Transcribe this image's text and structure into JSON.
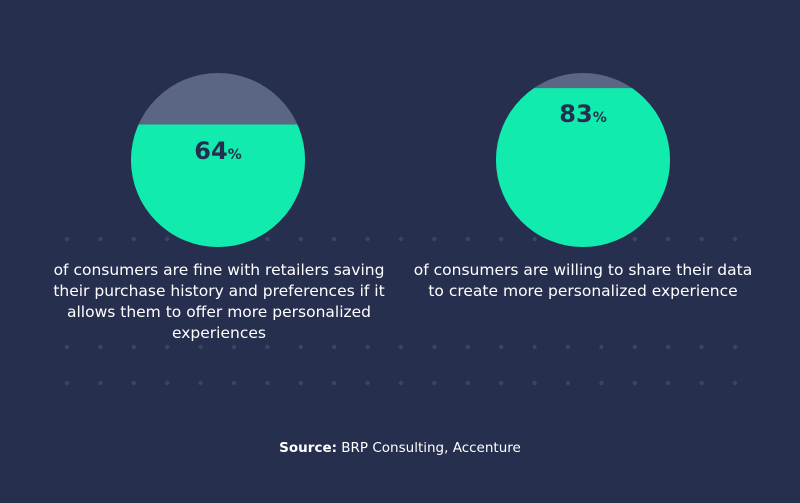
{
  "colors": {
    "background": "#272f4f",
    "fill": "#11ecae",
    "empty": "#5b6684",
    "value_text": "#262e4f",
    "dots": "#3a4463"
  },
  "chart_data": [
    {
      "type": "gauge",
      "value": 64,
      "max": 100,
      "value_label": "64",
      "unit": "%",
      "caption": "of consumers are fine with retailers saving their purchase history and preferences if it allows them to offer more personalized experiences"
    },
    {
      "type": "gauge",
      "value": 83,
      "max": 100,
      "value_label": "83",
      "unit": "%",
      "caption": "of consumers are willing to share their data to create more personalized experience"
    }
  ],
  "source": {
    "label": "Source:",
    "text": " BRP Consulting, Accenture"
  }
}
